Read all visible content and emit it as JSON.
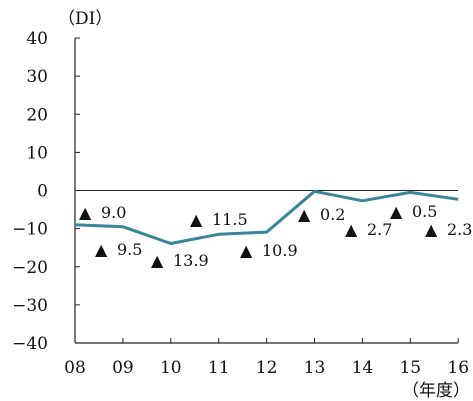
{
  "chart_data": {
    "type": "line",
    "y_unit_label": "（DI）",
    "x_unit_label": "（年度）",
    "x": [
      "08",
      "09",
      "10",
      "11",
      "12",
      "13",
      "14",
      "15",
      "16"
    ],
    "y_ticks": [
      "40",
      "30",
      "20",
      "10",
      "0",
      "−10",
      "−20",
      "−30",
      "−40"
    ],
    "ylim": [
      -40,
      40
    ],
    "series": [
      {
        "values": [
          -9.0,
          -9.5,
          -13.9,
          -11.5,
          -10.9,
          -0.2,
          -2.7,
          -0.5,
          -2.3
        ]
      }
    ],
    "data_labels": [
      {
        "marker": "▲",
        "text": "9.0"
      },
      {
        "marker": "▲",
        "text": "9.5"
      },
      {
        "marker": "▲",
        "text": "13.9"
      },
      {
        "marker": "▲",
        "text": "11.5"
      },
      {
        "marker": "▲",
        "text": "10.9"
      },
      {
        "marker": "▲",
        "text": "0.2"
      },
      {
        "marker": "▲",
        "text": "2.7"
      },
      {
        "marker": "▲",
        "text": "0.5"
      },
      {
        "marker": "▲",
        "text": "2.3"
      }
    ],
    "line_color": "#3a8595",
    "axis_color": "#222222",
    "grid": false
  }
}
